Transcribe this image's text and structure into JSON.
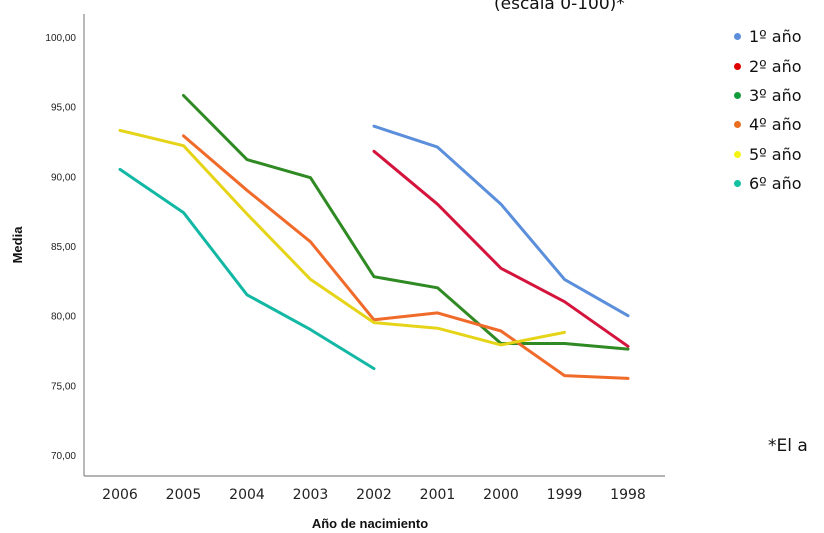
{
  "subtitle": "(escala 0-100)*",
  "note": "*El a",
  "chart_data": {
    "type": "line",
    "title": "",
    "xlabel": "Año de nacimiento",
    "ylabel": "Media",
    "categories": [
      "2006",
      "2005",
      "2004",
      "2003",
      "2002",
      "2001",
      "2000",
      "1999",
      "1998"
    ],
    "yticks": [
      "70,00",
      "75,00",
      "80,00",
      "85,00",
      "90,00",
      "95,00",
      "100,00"
    ],
    "ylim": [
      70,
      100
    ],
    "grid": false,
    "legend_position": "top-right",
    "series": [
      {
        "name": "1º año",
        "color": "#5b8fdb",
        "values": [
          null,
          null,
          null,
          null,
          93.6,
          92.1,
          88.0,
          82.6,
          80.0
        ]
      },
      {
        "name": "2º año",
        "color": "#d4143c",
        "values": [
          null,
          null,
          null,
          null,
          91.8,
          88.0,
          83.4,
          81.0,
          77.8
        ]
      },
      {
        "name": "3º año",
        "color": "#2f8a23",
        "values": [
          null,
          95.8,
          91.2,
          89.9,
          82.8,
          82.0,
          78.0,
          78.0,
          77.6
        ]
      },
      {
        "name": "4º año",
        "color": "#f06a2a",
        "values": [
          null,
          92.9,
          89.0,
          85.3,
          79.7,
          80.2,
          78.9,
          75.7,
          75.5
        ]
      },
      {
        "name": "5º año",
        "color": "#e6d419",
        "values": [
          93.3,
          92.2,
          87.3,
          82.6,
          79.5,
          79.1,
          77.9,
          78.8,
          null
        ]
      },
      {
        "name": "6º año",
        "color": "#12b8a4",
        "values": [
          90.5,
          87.4,
          81.5,
          79.0,
          76.2,
          null,
          null,
          null,
          null
        ]
      }
    ],
    "legend_marker_colors": [
      "#5b8fdb",
      "#e00000",
      "#139c3c",
      "#ea6e1f",
      "#f3f314",
      "#12c2a0"
    ]
  }
}
